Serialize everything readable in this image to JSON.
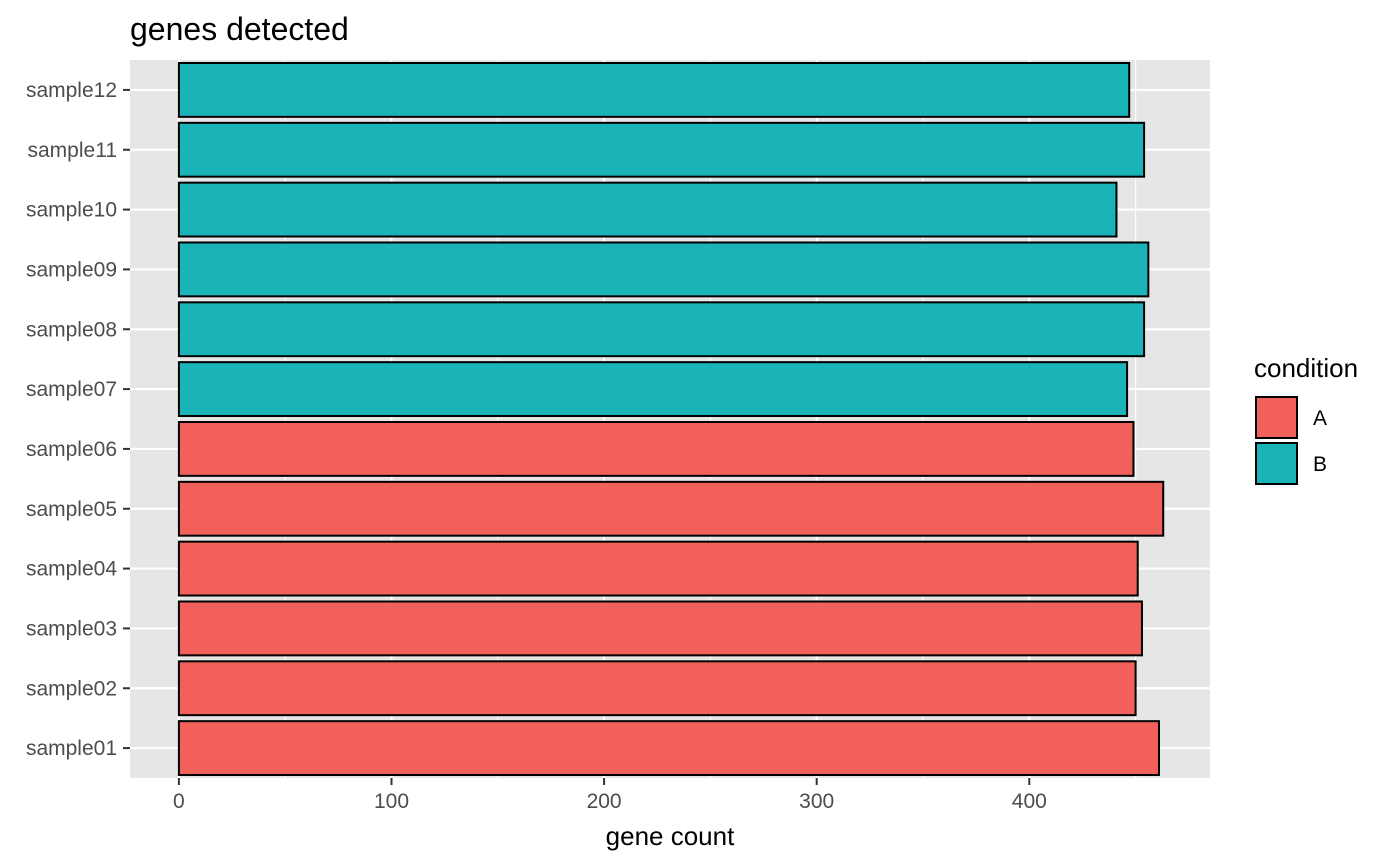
{
  "chart_data": {
    "type": "bar",
    "orientation": "horizontal",
    "title": "genes detected",
    "xlabel": "gene count",
    "ylabel": "",
    "xlim": [
      -23,
      485
    ],
    "x_ticks": [
      0,
      100,
      200,
      300,
      400
    ],
    "x_tick_labels": [
      "0",
      "100",
      "200",
      "300",
      "400"
    ],
    "grid": true,
    "categories": [
      "sample01",
      "sample02",
      "sample03",
      "sample04",
      "sample05",
      "sample06",
      "sample07",
      "sample08",
      "sample09",
      "sample10",
      "sample11",
      "sample12"
    ],
    "values": [
      461,
      450,
      453,
      451,
      463,
      449,
      446,
      454,
      456,
      441,
      454,
      447
    ],
    "group": [
      "A",
      "A",
      "A",
      "A",
      "A",
      "A",
      "B",
      "B",
      "B",
      "B",
      "B",
      "B"
    ],
    "legend": {
      "title": "condition",
      "position": "right",
      "entries": [
        {
          "label": "A",
          "color": "#F8766D"
        },
        {
          "label": "B",
          "color": "#00BFC4"
        }
      ]
    },
    "colors": {
      "A": "#F2605C",
      "B": "#1AB3B8",
      "panel": "#E6E6E6",
      "grid": "#FFFFFF",
      "bar_outline": "#000000"
    }
  }
}
